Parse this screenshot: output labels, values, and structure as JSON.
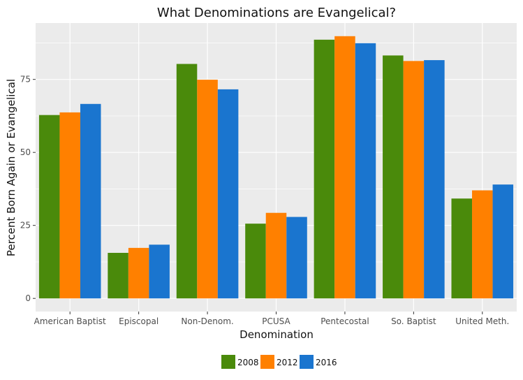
{
  "chart_data": {
    "type": "bar",
    "title": "What Denominations are Evangelical?",
    "xlabel": "Denomination",
    "ylabel": "Percent Born Again or Evangelical",
    "categories": [
      "American Baptist",
      "Episcopal",
      "Non-Denom.",
      "PCUSA",
      "Pentecostal",
      "So. Baptist",
      "United Meth."
    ],
    "series": [
      {
        "name": "2008",
        "color": "#4a8a0b",
        "values": [
          62.8,
          15.6,
          80.3,
          25.6,
          88.6,
          83.2,
          34.2
        ]
      },
      {
        "name": "2012",
        "color": "#ff8000",
        "values": [
          63.7,
          17.3,
          74.9,
          29.3,
          89.8,
          81.3,
          37.0
        ]
      },
      {
        "name": "2016",
        "color": "#1a75cf",
        "values": [
          66.6,
          18.4,
          71.6,
          27.9,
          87.4,
          81.6,
          39.0
        ]
      }
    ],
    "yticks": [
      0,
      25,
      50,
      75
    ],
    "ylim": [
      -4.5,
      94.3
    ],
    "grid": true,
    "legend_position": "bottom"
  }
}
